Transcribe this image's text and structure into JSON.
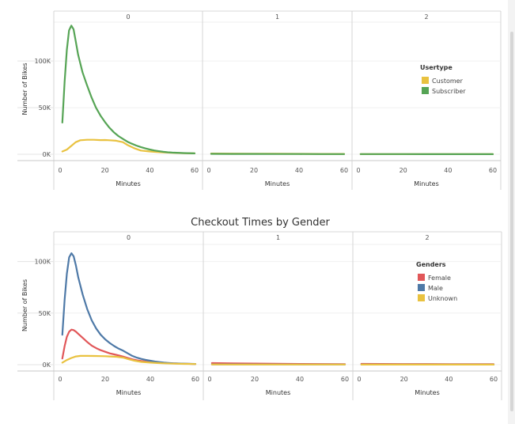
{
  "chart_data": [
    {
      "type": "line",
      "title": "",
      "panels": [
        "0",
        "1",
        "2"
      ],
      "xlabel": "Minutes",
      "ylabel": "Number of Bikes",
      "xlim": [
        0,
        60
      ],
      "ylim": [
        0,
        140000
      ],
      "x_ticks": [
        0,
        20,
        40,
        60
      ],
      "x_tick_labels": [
        "0",
        "20",
        "40",
        "60"
      ],
      "y_ticks": [
        0,
        50000,
        100000
      ],
      "y_tick_labels": [
        "0K",
        "50K",
        "100K"
      ],
      "legend": {
        "title": "Usertype",
        "placement": "right"
      },
      "series": [
        {
          "name": "Customer",
          "color": "#e9c240",
          "panels": [
            {
              "x": [
                1,
                3,
                5,
                7,
                9,
                12,
                15,
                18,
                20,
                22,
                25,
                28,
                30,
                33,
                36,
                40,
                43,
                46,
                50,
                55,
                60
              ],
              "y": [
                3000,
                5000,
                9000,
                13000,
                15000,
                15500,
                15500,
                15200,
                15300,
                15000,
                14500,
                13000,
                10000,
                6500,
                4000,
                3000,
                2500,
                2000,
                1600,
                1200,
                900
              ]
            },
            {
              "x": [
                1,
                10,
                20,
                30,
                40,
                50,
                60
              ],
              "y": [
                800,
                700,
                600,
                500,
                400,
                350,
                300
              ]
            },
            {
              "x": [
                1,
                10,
                20,
                30,
                40,
                50,
                60
              ],
              "y": [
                200,
                180,
                160,
                150,
                140,
                130,
                120
              ]
            }
          ]
        },
        {
          "name": "Subscriber",
          "color": "#56a455",
          "panels": [
            {
              "x": [
                1,
                2,
                3,
                4,
                5,
                6,
                7,
                8,
                10,
                12,
                14,
                16,
                18,
                20,
                22,
                24,
                26,
                28,
                30,
                32,
                34,
                36,
                38,
                40,
                42,
                44,
                46,
                48,
                50,
                55,
                60
              ],
              "y": [
                34000,
                78000,
                112000,
                133000,
                138000,
                134000,
                121000,
                107000,
                88000,
                74000,
                61000,
                50000,
                41500,
                34500,
                28500,
                23500,
                19500,
                16500,
                13500,
                11300,
                9300,
                7700,
                6300,
                5100,
                4100,
                3300,
                2600,
                2100,
                1800,
                1300,
                900
              ]
            },
            {
              "x": [
                1,
                10,
                20,
                30,
                40,
                50,
                60
              ],
              "y": [
                400,
                380,
                330,
                280,
                230,
                200,
                150
              ]
            },
            {
              "x": [
                1,
                10,
                20,
                30,
                40,
                50,
                60
              ],
              "y": [
                150,
                140,
                130,
                120,
                110,
                100,
                90
              ]
            }
          ]
        }
      ]
    },
    {
      "type": "line",
      "title": "Checkout Times by Gender",
      "panels": [
        "0",
        "1",
        "2"
      ],
      "xlabel": "Minutes",
      "ylabel": "Number of Bikes",
      "xlim": [
        0,
        60
      ],
      "ylim": [
        0,
        115000
      ],
      "x_ticks": [
        0,
        20,
        40,
        60
      ],
      "x_tick_labels": [
        "0",
        "20",
        "40",
        "60"
      ],
      "y_ticks": [
        0,
        50000,
        100000
      ],
      "y_tick_labels": [
        "0K",
        "50K",
        "100K"
      ],
      "legend": {
        "title": "Genders",
        "placement": "right"
      },
      "series": [
        {
          "name": "Female",
          "color": "#e15759",
          "panels": [
            {
              "x": [
                1,
                2,
                3,
                4,
                5,
                6,
                7,
                8,
                10,
                12,
                14,
                16,
                18,
                20,
                22,
                24,
                26,
                28,
                30,
                32,
                34,
                36,
                38,
                40,
                42,
                44,
                46,
                48,
                50,
                55,
                60
              ],
              "y": [
                6000,
                18000,
                27000,
                32000,
                34000,
                33500,
                32000,
                30000,
                26000,
                22000,
                18500,
                16000,
                14000,
                12500,
                11000,
                10000,
                9000,
                7800,
                6500,
                5200,
                4300,
                3600,
                3000,
                2600,
                2200,
                1900,
                1600,
                1400,
                1200,
                900,
                600
              ]
            },
            {
              "x": [
                1,
                10,
                20,
                30,
                40,
                50,
                60
              ],
              "y": [
                1500,
                1300,
                1100,
                900,
                700,
                600,
                500
              ]
            },
            {
              "x": [
                1,
                10,
                20,
                30,
                40,
                50,
                60
              ],
              "y": [
                800,
                700,
                650,
                600,
                550,
                500,
                450
              ]
            }
          ]
        },
        {
          "name": "Male",
          "color": "#4e79a7",
          "panels": [
            {
              "x": [
                1,
                2,
                3,
                4,
                5,
                6,
                7,
                8,
                10,
                12,
                14,
                16,
                18,
                20,
                22,
                24,
                26,
                28,
                30,
                32,
                34,
                36,
                38,
                40,
                42,
                44,
                46,
                48,
                50,
                55,
                60
              ],
              "y": [
                29000,
                63000,
                88000,
                104000,
                108000,
                105000,
                96000,
                85000,
                68000,
                54000,
                43000,
                35000,
                29000,
                24500,
                21000,
                18000,
                15500,
                13500,
                11000,
                8500,
                6800,
                5600,
                4600,
                3800,
                3100,
                2500,
                2000,
                1700,
                1400,
                1000,
                700
              ]
            },
            {
              "x": [
                1,
                10,
                20,
                30,
                40,
                50,
                60
              ],
              "y": [
                300,
                280,
                250,
                200,
                160,
                140,
                120
              ]
            },
            {
              "x": [
                1,
                10,
                20,
                30,
                40,
                50,
                60
              ],
              "y": [
                120,
                110,
                100,
                90,
                80,
                70,
                60
              ]
            }
          ]
        },
        {
          "name": "Unknown",
          "color": "#e9c240",
          "panels": [
            {
              "x": [
                1,
                3,
                5,
                7,
                9,
                12,
                15,
                18,
                20,
                22,
                25,
                28,
                30,
                33,
                36,
                40,
                43,
                46,
                50,
                55,
                60
              ],
              "y": [
                2000,
                4500,
                6500,
                8000,
                8500,
                8500,
                8400,
                8300,
                8200,
                8000,
                7700,
                6800,
                5500,
                3800,
                2700,
                2000,
                1600,
                1300,
                1000,
                800,
                600
              ]
            },
            {
              "x": [
                1,
                10,
                20,
                30,
                40,
                50,
                60
              ],
              "y": [
                200,
                190,
                180,
                170,
                160,
                150,
                140
              ]
            },
            {
              "x": [
                1,
                10,
                20,
                30,
                40,
                50,
                60
              ],
              "y": [
                100,
                95,
                90,
                85,
                80,
                75,
                70
              ]
            }
          ]
        }
      ]
    }
  ]
}
